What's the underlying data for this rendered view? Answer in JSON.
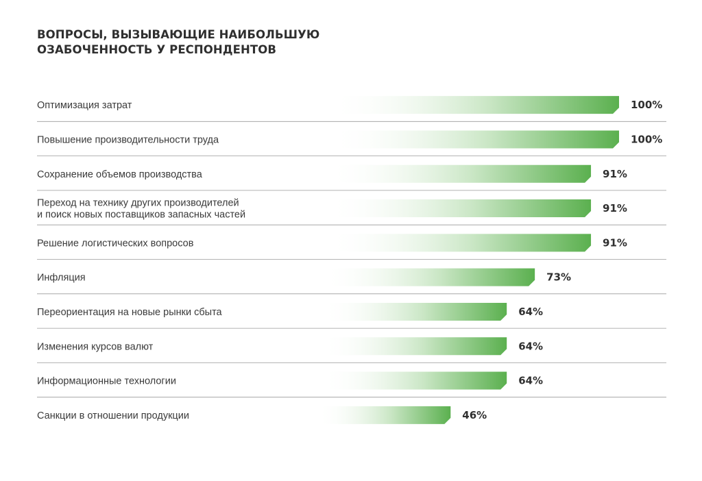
{
  "title_lines": [
    "ВОПРОСЫ, ВЫЗЫВАЮЩИЕ НАИБОЛЬШУЮ",
    "ОЗАБОЧЕННОСТЬ У РЕСПОНДЕНТОВ"
  ],
  "colors": {
    "bar_end": "#5bb04f",
    "bar_start": "#ffffff",
    "divider": "#9a9a9a"
  },
  "chart_data": {
    "type": "bar",
    "orientation": "horizontal",
    "title": "ВОПРОСЫ, ВЫЗЫВАЮЩИЕ НАИБОЛЬШУЮ ОЗАБОЧЕННОСТЬ У РЕСПОНДЕНТОВ",
    "categories": [
      [
        "Оптимизация затрат"
      ],
      [
        "Повышение производительности труда"
      ],
      [
        "Сохранение объемов производства"
      ],
      [
        "Переход на технику других производителей",
        "и поиск новых поставщиков запасных частей"
      ],
      [
        "Решение логистических вопросов"
      ],
      [
        "Инфляция"
      ],
      [
        "Переориентация на новые рынки сбыта"
      ],
      [
        "Изменения курсов валют"
      ],
      [
        "Информационные технологии"
      ],
      [
        "Санкции в отношении продукции"
      ]
    ],
    "values": [
      100,
      100,
      91,
      91,
      91,
      73,
      64,
      64,
      64,
      46
    ],
    "value_labels": [
      "100%",
      "100%",
      "91%",
      "91%",
      "91%",
      "73%",
      "64%",
      "64%",
      "64%",
      "46%"
    ],
    "unit": "%",
    "xlim": [
      0,
      100
    ],
    "grid": false,
    "legend": "none"
  }
}
